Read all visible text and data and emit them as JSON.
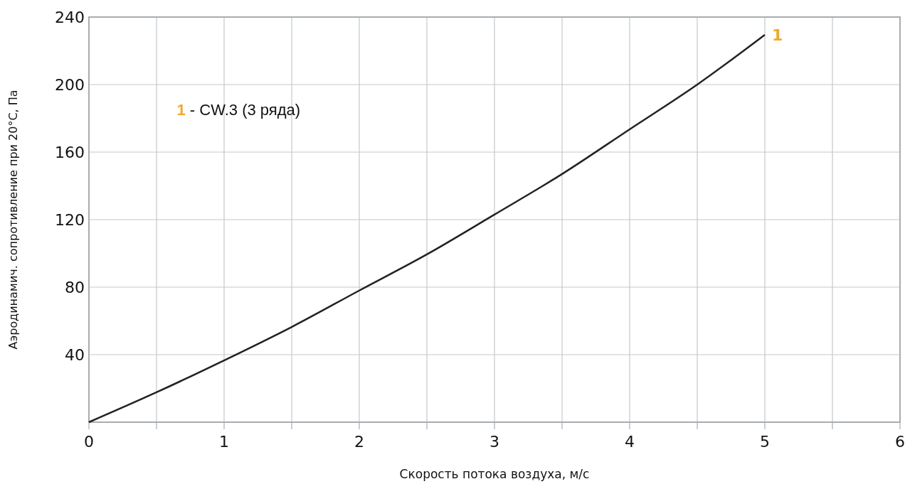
{
  "chart_data": {
    "type": "line",
    "xlabel": "Скорость потока воздуха, м/с",
    "ylabel": "Аэродинамич. сопротивление при 20°С, Па",
    "x": [
      0,
      0.5,
      1,
      1.5,
      2,
      2.5,
      3,
      3.5,
      4,
      4.5,
      5
    ],
    "series": [
      {
        "name": "1",
        "color": "#222222",
        "values": [
          0,
          17.7,
          36.6,
          56.4,
          78,
          99.4,
          123,
          147,
          173.5,
          200,
          229.5
        ]
      }
    ],
    "xlim": [
      0,
      6
    ],
    "xticks": [
      0,
      {
        "value": 0.5,
        "label": null
      },
      1,
      {
        "value": 1.5,
        "label": null
      },
      2,
      {
        "value": 2.5,
        "label": null
      },
      3,
      {
        "value": 3.5,
        "label": null
      },
      4,
      {
        "value": 4.5,
        "label": null
      },
      5,
      {
        "value": 5.5,
        "label": null
      },
      6
    ],
    "ylim": [
      0,
      240
    ],
    "yticks": [
      40,
      80,
      120,
      160,
      200,
      240
    ],
    "grid": true,
    "marker": "none",
    "line_style": "solid",
    "annotations": [
      "1 - CW.3 (3 ряда)"
    ]
  }
}
